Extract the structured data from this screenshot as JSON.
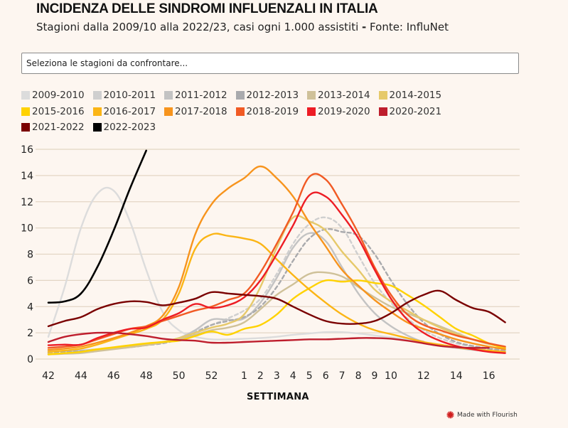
{
  "header": {
    "title": "INCIDENZA DELLE SINDROMI INFLUENZALI IN ITALIA",
    "subtitle_main": "Stagioni dalla 2009/10 alla 2022/23, casi ogni 1.000 assistiti ",
    "subtitle_dash": "-",
    "subtitle_source": " Fonte: InfluNet"
  },
  "controls": {
    "season_select_placeholder": "Seleziona le stagioni da confrontare..."
  },
  "footer": {
    "credit": "Made with Flourish"
  },
  "chart_data": {
    "type": "line",
    "title": "INCIDENZA DELLE SINDROMI INFLUENZALI IN ITALIA",
    "subtitle": "Stagioni dalla 2009/10 alla 2022/23, casi ogni 1.000 assistiti - Fonte: InfluNet",
    "values_note": "No data values are labelled in the screenshot. Every series value is an approximate visual reading of the rendered curve at each week tick, estimated against the y-axis gridlines; none are taken from the InfluNet source.",
    "xlabel": "SETTIMANA",
    "ylabel": "",
    "ylim": [
      0,
      16
    ],
    "yticks": [
      "0",
      "2",
      "4",
      "6",
      "8",
      "10",
      "12",
      "14",
      "16"
    ],
    "grid": true,
    "legend_position": "top",
    "x": [
      42,
      43,
      44,
      45,
      46,
      47,
      48,
      49,
      50,
      51,
      52,
      53,
      1,
      2,
      3,
      4,
      5,
      6,
      7,
      8,
      9,
      10,
      11,
      12,
      13,
      14,
      15,
      16,
      17
    ],
    "xtick_labels": [
      "42",
      "44",
      "46",
      "48",
      "50",
      "52",
      "1",
      "2",
      "3",
      "4",
      "5",
      "6",
      "7",
      "8",
      "9",
      "10",
      "12",
      "14",
      "16"
    ],
    "xtick_weeks": [
      42,
      44,
      46,
      48,
      50,
      52,
      1,
      2,
      3,
      4,
      5,
      6,
      7,
      8,
      9,
      10,
      12,
      14,
      16
    ],
    "series": [
      {
        "name": "2009-2010",
        "color": "#dcdcdc",
        "dashed": false,
        "values": [
          1.7,
          5.5,
          10.0,
          12.6,
          12.85,
          10.5,
          6.8,
          3.6,
          2.2,
          1.7,
          1.5,
          1.5,
          1.55,
          1.6,
          1.7,
          1.85,
          1.95,
          2.05,
          2.05,
          1.95,
          1.8,
          1.65,
          1.5,
          1.35,
          null,
          null,
          null,
          null,
          null
        ]
      },
      {
        "name": "2010-2011",
        "color": "#cfcfcf",
        "dashed": true,
        "values": [
          0.45,
          0.5,
          0.6,
          0.7,
          0.8,
          0.95,
          1.1,
          1.3,
          1.6,
          2.1,
          2.6,
          3.1,
          3.7,
          4.6,
          6.5,
          8.8,
          10.3,
          10.8,
          10.0,
          7.9,
          5.8,
          4.3,
          3.1,
          2.2,
          1.6,
          1.2,
          0.95,
          0.75,
          0.6
        ]
      },
      {
        "name": "2011-2012",
        "color": "#c3c3c3",
        "dashed": false,
        "values": [
          0.6,
          0.6,
          0.65,
          0.75,
          0.85,
          1.0,
          1.15,
          1.3,
          1.6,
          2.2,
          3.0,
          3.0,
          3.1,
          4.3,
          6.2,
          8.5,
          9.6,
          9.0,
          7.0,
          5.0,
          3.5,
          2.5,
          1.8,
          1.3,
          1.0,
          0.85,
          0.7,
          0.6,
          0.55
        ]
      },
      {
        "name": "2012-2013",
        "color": "#a9aaad",
        "dashed": true,
        "values": [
          0.5,
          0.55,
          0.6,
          0.7,
          0.8,
          0.9,
          1.05,
          1.2,
          1.5,
          2.0,
          2.6,
          2.9,
          3.2,
          4.0,
          5.5,
          7.5,
          9.2,
          9.9,
          9.7,
          9.4,
          8.0,
          6.0,
          4.2,
          2.8,
          1.9,
          1.3,
          1.0,
          0.8,
          0.65
        ]
      },
      {
        "name": "2013-2014",
        "color": "#cfc199",
        "dashed": false,
        "values": [
          0.35,
          0.4,
          0.45,
          0.6,
          0.75,
          0.9,
          1.05,
          1.25,
          1.5,
          1.85,
          2.2,
          2.4,
          2.8,
          3.8,
          4.9,
          5.7,
          6.5,
          6.6,
          6.3,
          5.5,
          4.7,
          4.0,
          3.5,
          3.0,
          2.5,
          2.0,
          1.5,
          1.15,
          0.9
        ]
      },
      {
        "name": "2014-2015",
        "color": "#e6c96a",
        "dashed": false,
        "values": [
          0.4,
          0.45,
          0.55,
          0.7,
          0.85,
          1.0,
          1.15,
          1.3,
          1.6,
          2.0,
          2.4,
          2.7,
          3.4,
          5.5,
          8.5,
          10.8,
          10.5,
          9.8,
          8.2,
          6.8,
          5.3,
          4.4,
          3.7,
          3.0,
          2.4,
          1.9,
          1.5,
          1.15,
          0.9
        ]
      },
      {
        "name": "2015-2016",
        "color": "#ffd200",
        "dashed": false,
        "values": [
          0.35,
          0.45,
          0.55,
          0.75,
          0.9,
          1.05,
          1.2,
          1.3,
          1.4,
          1.75,
          2.1,
          1.85,
          2.3,
          2.6,
          3.4,
          4.6,
          5.4,
          6.0,
          5.9,
          6.0,
          5.8,
          5.6,
          4.9,
          4.1,
          3.2,
          2.3,
          1.8,
          1.2,
          0.8
        ]
      },
      {
        "name": "2016-2017",
        "color": "#fbb515",
        "dashed": false,
        "values": [
          0.55,
          0.65,
          0.8,
          1.1,
          1.5,
          1.9,
          2.3,
          3.0,
          5.0,
          8.4,
          9.5,
          9.4,
          9.2,
          8.8,
          7.6,
          6.4,
          5.3,
          4.3,
          3.4,
          2.7,
          2.2,
          1.9,
          1.6,
          1.3,
          1.1,
          0.9,
          0.75,
          0.65,
          0.55
        ]
      },
      {
        "name": "2017-2018",
        "color": "#f7941d",
        "dashed": false,
        "values": [
          0.7,
          0.8,
          0.95,
          1.25,
          1.6,
          2.0,
          2.5,
          3.3,
          5.5,
          9.5,
          11.8,
          13.0,
          13.8,
          14.7,
          13.8,
          12.4,
          10.4,
          8.6,
          6.8,
          5.6,
          4.5,
          3.6,
          2.8,
          2.3,
          1.9,
          1.5,
          1.2,
          0.95,
          0.75
        ]
      },
      {
        "name": "2018-2019",
        "color": "#f15a24",
        "dashed": false,
        "values": [
          0.85,
          0.95,
          1.1,
          1.5,
          1.9,
          2.3,
          2.5,
          2.9,
          3.3,
          3.7,
          4.0,
          4.5,
          5.0,
          6.6,
          8.8,
          11.2,
          13.9,
          13.7,
          11.8,
          9.6,
          7.0,
          4.9,
          3.4,
          2.6,
          2.2,
          1.8,
          1.5,
          1.2,
          0.95
        ]
      },
      {
        "name": "2019-2020",
        "color": "#ed1c24",
        "dashed": false,
        "values": [
          1.05,
          1.1,
          1.1,
          1.6,
          2.0,
          2.3,
          2.4,
          3.0,
          3.5,
          4.2,
          3.9,
          4.1,
          4.7,
          6.0,
          8.0,
          10.2,
          12.5,
          12.4,
          11.0,
          9.2,
          6.8,
          4.6,
          3.0,
          2.0,
          1.4,
          1.0,
          0.75,
          0.55,
          0.45
        ]
      },
      {
        "name": "2020-2021",
        "color": "#be1e2d",
        "dashed": false,
        "values": [
          1.3,
          1.7,
          1.9,
          2.0,
          2.0,
          1.9,
          1.75,
          1.55,
          1.45,
          1.4,
          1.25,
          1.25,
          1.3,
          1.35,
          1.4,
          1.45,
          1.5,
          1.5,
          1.55,
          1.6,
          1.6,
          1.55,
          1.4,
          1.2,
          1.0,
          0.9,
          0.85,
          0.85,
          null
        ]
      },
      {
        "name": "2021-2022",
        "color": "#7a0000",
        "dashed": false,
        "values": [
          2.5,
          2.9,
          3.2,
          3.8,
          4.2,
          4.4,
          4.35,
          4.1,
          4.3,
          4.6,
          5.1,
          5.0,
          4.9,
          4.8,
          4.6,
          4.0,
          3.4,
          2.9,
          2.7,
          2.7,
          2.9,
          3.5,
          4.3,
          4.9,
          5.2,
          4.5,
          3.9,
          3.6,
          2.8
        ]
      },
      {
        "name": "2022-2023",
        "color": "#000000",
        "dashed": false,
        "values": [
          4.3,
          4.4,
          5.0,
          7.0,
          9.8,
          13.0,
          15.9,
          null,
          null,
          null,
          null,
          null,
          null,
          null,
          null,
          null,
          null,
          null,
          null,
          null,
          null,
          null,
          null,
          null,
          null,
          null,
          null,
          null,
          null
        ]
      }
    ]
  }
}
